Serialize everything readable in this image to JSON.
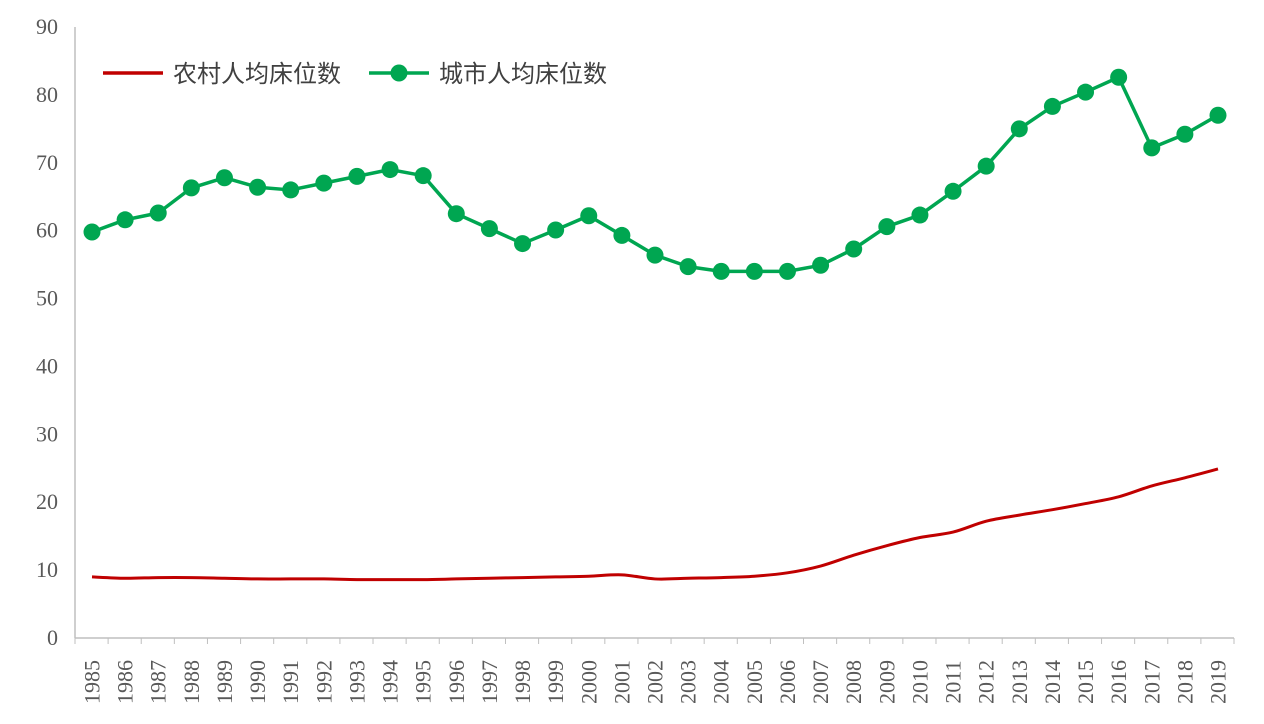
{
  "chart_data": {
    "type": "line",
    "title": "",
    "xlabel": "",
    "ylabel": "",
    "ylim": [
      0,
      90
    ],
    "yticks": [
      0,
      10,
      20,
      30,
      40,
      50,
      60,
      70,
      80,
      90
    ],
    "grid": false,
    "legend_position": "top-left",
    "x": [
      "1985",
      "1986",
      "1987",
      "1988",
      "1989",
      "1990",
      "1991",
      "1992",
      "1993",
      "1994",
      "1995",
      "1996",
      "1997",
      "1998",
      "1999",
      "2000",
      "2001",
      "2002",
      "2003",
      "2004",
      "2005",
      "2006",
      "2007",
      "2008",
      "2009",
      "2010",
      "2011",
      "2012",
      "2013",
      "2014",
      "2015",
      "2016",
      "2017",
      "2018",
      "2019"
    ],
    "series": [
      {
        "name": "农村人均床位数",
        "color": "#C00000",
        "markers": false,
        "values": [
          9.0,
          8.8,
          8.9,
          8.9,
          8.8,
          8.7,
          8.7,
          8.7,
          8.6,
          8.6,
          8.6,
          8.7,
          8.8,
          8.9,
          9.0,
          9.1,
          9.3,
          8.7,
          8.8,
          8.9,
          9.1,
          9.6,
          10.6,
          12.2,
          13.6,
          14.8,
          15.6,
          17.2,
          18.1,
          18.9,
          19.8,
          20.8,
          22.4,
          23.6,
          24.9
        ]
      },
      {
        "name": "城市人均床位数",
        "color": "#00A651",
        "markers": true,
        "values": [
          59.8,
          61.6,
          62.6,
          66.3,
          67.8,
          66.4,
          66.0,
          67.0,
          68.0,
          69.0,
          68.1,
          62.5,
          60.3,
          58.1,
          60.1,
          62.2,
          59.3,
          56.4,
          54.7,
          54.0,
          54.0,
          54.0,
          54.9,
          57.3,
          60.6,
          62.3,
          65.8,
          69.5,
          75.0,
          78.3,
          80.4,
          82.6,
          72.2,
          74.2,
          77.0
        ]
      }
    ]
  }
}
